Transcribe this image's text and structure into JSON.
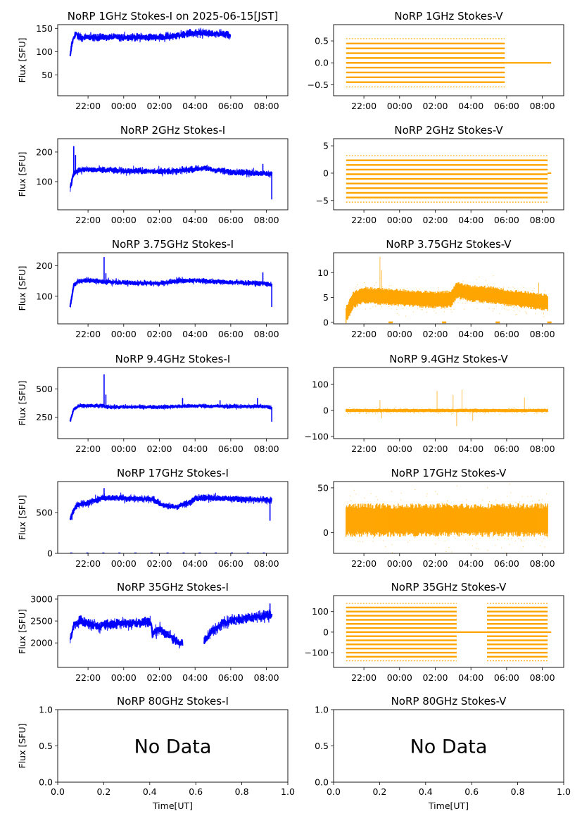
{
  "figure": {
    "title_date": "2025-06-15[JST]",
    "colors": {
      "stokes_i": "#0000ff",
      "stokes_v": "#ffa500"
    },
    "no_data_text": "No Data"
  },
  "time_ticks": [
    "22:00",
    "00:00",
    "02:00",
    "04:00",
    "06:00",
    "08:00"
  ],
  "chart_data": [
    {
      "id": "1ghz-i",
      "type": "scatter",
      "title": "NoRP 1GHz Stokes-I on 2025-06-15[JST]",
      "ylabel": "Flux [SFU]",
      "xlabel": "",
      "ylim": [
        5,
        158
      ],
      "yticks": [
        50,
        100,
        150
      ],
      "t_start": 21.0,
      "t_end": 30.0,
      "style": "line",
      "profile": [
        [
          21.0,
          88
        ],
        [
          21.1,
          118
        ],
        [
          21.3,
          140
        ],
        [
          21.5,
          130
        ],
        [
          22,
          130
        ],
        [
          24,
          131
        ],
        [
          26,
          131
        ],
        [
          27.0,
          133
        ],
        [
          27.5,
          139
        ],
        [
          28.3,
          141
        ],
        [
          28.6,
          138
        ],
        [
          29.0,
          139
        ],
        [
          29.7,
          137
        ],
        [
          30.0,
          135
        ]
      ],
      "spikes": [
        [
          21.3,
          142
        ],
        [
          21.6,
          138
        ]
      ],
      "gaps": [],
      "noise": 3
    },
    {
      "id": "1ghz-v",
      "type": "scatter",
      "title": "NoRP 1GHz Stokes-V",
      "ylabel": "",
      "xlabel": "",
      "ylim": [
        -0.75,
        0.87
      ],
      "yticks": [
        -0.5,
        0.0,
        0.5
      ],
      "t_start": 21.0,
      "t_end": 32.5,
      "style": "bands",
      "band_end": 29.9,
      "band_levels": [
        -0.55,
        -0.44,
        -0.33,
        -0.22,
        -0.11,
        0.0,
        0.11,
        0.22,
        0.33,
        0.44,
        0.55
      ],
      "flat_after": 0.0
    },
    {
      "id": "2ghz-i",
      "type": "scatter",
      "title": "NoRP 2GHz Stokes-I",
      "ylabel": "Flux [SFU]",
      "xlabel": "",
      "ylim": [
        5,
        245
      ],
      "yticks": [
        100,
        200
      ],
      "t_start": 21.0,
      "t_end": 32.3,
      "style": "line",
      "profile": [
        [
          21.0,
          78
        ],
        [
          21.2,
          130
        ],
        [
          21.5,
          140
        ],
        [
          22,
          140
        ],
        [
          23,
          139
        ],
        [
          24,
          136
        ],
        [
          26,
          135
        ],
        [
          27,
          136
        ],
        [
          28,
          143
        ],
        [
          28.5,
          145
        ],
        [
          29,
          140
        ],
        [
          30,
          133
        ],
        [
          31,
          130
        ],
        [
          31.8,
          128
        ],
        [
          32.3,
          126
        ]
      ],
      "spikes": [
        [
          21.2,
          220
        ],
        [
          21.3,
          190
        ],
        [
          22.9,
          150
        ],
        [
          31.8,
          160
        ],
        [
          32.3,
          40
        ]
      ],
      "gaps": [],
      "noise": 4
    },
    {
      "id": "2ghz-v",
      "type": "scatter",
      "title": "NoRP 2GHz Stokes-V",
      "ylabel": "",
      "xlabel": "",
      "ylim": [
        -6.7,
        6.3
      ],
      "yticks": [
        -5,
        0,
        5
      ],
      "t_start": 21.0,
      "t_end": 32.5,
      "style": "bands",
      "band_end": 32.3,
      "band_levels": [
        -5.3,
        -4.45,
        -3.6,
        -2.75,
        -1.9,
        -1.05,
        -0.2,
        0.65,
        1.5,
        2.35,
        3.2
      ],
      "flat_after": 0.0
    },
    {
      "id": "375ghz-i",
      "type": "scatter",
      "title": "NoRP 3.75GHz Stokes-I",
      "ylabel": "Flux [SFU]",
      "xlabel": "",
      "ylim": [
        10,
        242
      ],
      "yticks": [
        100,
        200
      ],
      "t_start": 21.0,
      "t_end": 32.3,
      "style": "line",
      "profile": [
        [
          21.0,
          68
        ],
        [
          21.2,
          135
        ],
        [
          21.5,
          150
        ],
        [
          22,
          152
        ],
        [
          22.9,
          148
        ],
        [
          23.5,
          145
        ],
        [
          25,
          143
        ],
        [
          26,
          142
        ],
        [
          27,
          150
        ],
        [
          28,
          152
        ],
        [
          29,
          148
        ],
        [
          30,
          146
        ],
        [
          31,
          143
        ],
        [
          31.8,
          142
        ],
        [
          32.3,
          138
        ]
      ],
      "spikes": [
        [
          22.9,
          228
        ],
        [
          23.0,
          175
        ],
        [
          31.8,
          178
        ],
        [
          32.3,
          65
        ]
      ],
      "gaps": [],
      "noise": 3
    },
    {
      "id": "375ghz-v",
      "type": "scatter",
      "title": "NoRP 3.75GHz Stokes-V",
      "ylabel": "",
      "xlabel": "",
      "ylim": [
        -0.3,
        14.0
      ],
      "yticks": [
        0,
        5,
        10
      ],
      "t_start": 21.0,
      "t_end": 32.5,
      "style": "noise",
      "noise_profile": [
        [
          21.0,
          1.5
        ],
        [
          21.4,
          4.5
        ],
        [
          22,
          5.5
        ],
        [
          23,
          5.2
        ],
        [
          24,
          5.0
        ],
        [
          26,
          4.5
        ],
        [
          26.9,
          4.7
        ],
        [
          27.2,
          6.5
        ],
        [
          28,
          5.8
        ],
        [
          29,
          5.6
        ],
        [
          30,
          5.0
        ],
        [
          31,
          4.6
        ],
        [
          32.3,
          4.0
        ]
      ],
      "spread": 1.6,
      "spikes": [
        [
          22.9,
          13.2
        ],
        [
          23.0,
          10.5
        ],
        [
          31.8,
          8.0
        ]
      ],
      "zero_marks": [
        23.5,
        26.5,
        29.5,
        32.4
      ]
    },
    {
      "id": "94ghz-i",
      "type": "scatter",
      "title": "NoRP 9.4GHz Stokes-I",
      "ylabel": "Flux [SFU]",
      "xlabel": "",
      "ylim": [
        60,
        690
      ],
      "yticks": [
        250,
        500
      ],
      "t_start": 21.0,
      "t_end": 32.3,
      "style": "line",
      "profile": [
        [
          21.0,
          215
        ],
        [
          21.2,
          320
        ],
        [
          21.5,
          350
        ],
        [
          22.8,
          350
        ],
        [
          23.2,
          340
        ],
        [
          26,
          340
        ],
        [
          27,
          345
        ],
        [
          28,
          350
        ],
        [
          30,
          345
        ],
        [
          32,
          345
        ],
        [
          32.3,
          330
        ]
      ],
      "spikes": [
        [
          22.9,
          630
        ],
        [
          23.0,
          450
        ],
        [
          27.3,
          420
        ],
        [
          29.4,
          400
        ],
        [
          31.5,
          420
        ],
        [
          32.3,
          210
        ]
      ],
      "gaps": [],
      "noise": 6
    },
    {
      "id": "94ghz-v",
      "type": "scatter",
      "title": "NoRP 9.4GHz Stokes-V",
      "ylabel": "",
      "xlabel": "",
      "ylim": [
        -108,
        165
      ],
      "yticks": [
        -100,
        0,
        100
      ],
      "t_start": 21.0,
      "t_end": 32.5,
      "style": "noise",
      "noise_profile": [
        [
          21.0,
          0
        ],
        [
          32.3,
          0
        ]
      ],
      "spread": 6,
      "spikes": [
        [
          22.9,
          40
        ],
        [
          23.0,
          -30
        ],
        [
          26.1,
          75
        ],
        [
          27.0,
          60
        ],
        [
          27.2,
          -60
        ],
        [
          27.5,
          80
        ],
        [
          28.1,
          -40
        ],
        [
          31.0,
          50
        ]
      ],
      "zero_marks": []
    },
    {
      "id": "17ghz-i",
      "type": "scatter",
      "title": "NoRP 17GHz Stokes-I",
      "ylabel": "Flux [SFU]",
      "xlabel": "",
      "ylim": [
        0,
        880
      ],
      "yticks": [
        0,
        500
      ],
      "t_start": 21.0,
      "t_end": 32.3,
      "style": "line",
      "profile": [
        [
          21.0,
          420
        ],
        [
          21.3,
          580
        ],
        [
          22,
          620
        ],
        [
          22.8,
          680
        ],
        [
          23.5,
          680
        ],
        [
          25,
          670
        ],
        [
          25.7,
          660
        ],
        [
          26,
          610
        ],
        [
          26.5,
          570
        ],
        [
          27,
          575
        ],
        [
          27.7,
          620
        ],
        [
          28,
          680
        ],
        [
          29,
          680
        ],
        [
          31,
          660
        ],
        [
          32.3,
          650
        ]
      ],
      "spikes": [
        [
          22.9,
          800
        ],
        [
          21.1,
          410
        ],
        [
          32.2,
          400
        ]
      ],
      "gaps": [],
      "noise": 15,
      "baseline": true
    },
    {
      "id": "17ghz-v",
      "type": "scatter",
      "title": "NoRP 17GHz Stokes-V",
      "ylabel": "",
      "xlabel": "",
      "ylim": [
        -23,
        57
      ],
      "yticks": [
        0,
        50
      ],
      "t_start": 21.0,
      "t_end": 32.5,
      "style": "noise",
      "noise_profile": [
        [
          21.0,
          14
        ],
        [
          32.3,
          14
        ]
      ],
      "spread": 17,
      "spikes": [],
      "zero_marks": []
    },
    {
      "id": "35ghz-i",
      "type": "scatter",
      "title": "NoRP 35GHz Stokes-I",
      "ylabel": "Flux [SFU]",
      "xlabel": "",
      "ylim": [
        1440,
        3080
      ],
      "yticks": [
        2000,
        2500,
        3000
      ],
      "t_start": 21.0,
      "t_end": 32.3,
      "style": "line",
      "profile": [
        [
          21.0,
          2050
        ],
        [
          21.2,
          2400
        ],
        [
          21.5,
          2500
        ],
        [
          22,
          2450
        ],
        [
          22.5,
          2380
        ],
        [
          23,
          2420
        ],
        [
          25,
          2470
        ],
        [
          25.5,
          2480
        ],
        [
          25.6,
          2200
        ],
        [
          26,
          2320
        ],
        [
          26.4,
          2200
        ],
        [
          27,
          2050
        ],
        [
          27.3,
          2000
        ],
        [
          28.5,
          2000
        ],
        [
          28.9,
          2250
        ],
        [
          29.5,
          2450
        ],
        [
          30.5,
          2550
        ],
        [
          31.5,
          2600
        ],
        [
          32.3,
          2650
        ]
      ],
      "spikes": [
        [
          32.2,
          2900
        ]
      ],
      "gaps": [
        [
          27.3,
          28.5
        ]
      ],
      "noise": 45
    },
    {
      "id": "35ghz-v",
      "type": "scatter",
      "title": "NoRP 35GHz Stokes-V",
      "ylabel": "",
      "xlabel": "",
      "ylim": [
        -172,
        178
      ],
      "yticks": [
        -100,
        0,
        100
      ],
      "t_start": 21.0,
      "t_end": 32.5,
      "style": "bands",
      "band_end": 32.3,
      "band_gap": [
        27.2,
        28.9
      ],
      "band_levels": [
        -140,
        -120,
        -100,
        -80,
        -60,
        -40,
        -20,
        0,
        20,
        40,
        60,
        80,
        100,
        120,
        140
      ],
      "flat_after": 0.0
    },
    {
      "id": "80ghz-i",
      "type": "empty",
      "title": "NoRP 80GHz Stokes-I",
      "ylabel": "Flux [SFU]",
      "xlabel": "Time[UT]",
      "xticks": [
        "0.0",
        "0.2",
        "0.4",
        "0.6",
        "0.8",
        "1.0"
      ],
      "yticks": [
        "0.0",
        "0.5",
        "1.0"
      ]
    },
    {
      "id": "80ghz-v",
      "type": "empty",
      "title": "NoRP 80GHz Stokes-V",
      "ylabel": "",
      "xlabel": "Time[UT]",
      "xticks": [
        "0.0",
        "0.2",
        "0.4",
        "0.6",
        "0.8",
        "1.0"
      ],
      "yticks": [
        "0.0",
        "0.5",
        "1.0"
      ]
    }
  ]
}
